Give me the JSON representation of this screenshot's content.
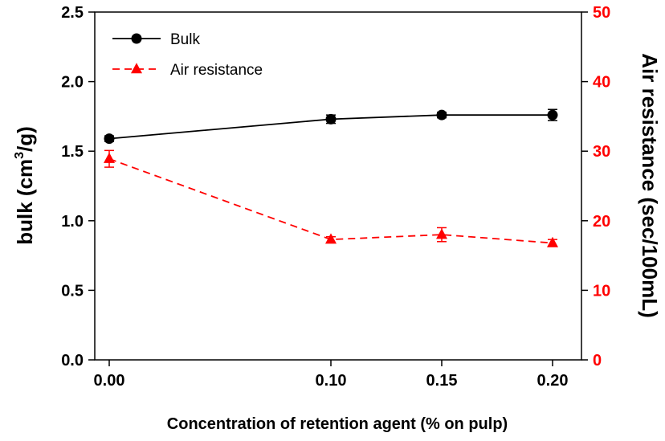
{
  "chart_data": {
    "type": "line",
    "title": "",
    "xlabel": "Concentration of retention agent (% on pulp)",
    "ylabel_left": {
      "main": "bulk (cm",
      "sup": "3",
      "tail": "/g)"
    },
    "ylabel_right": "Air resistance (sec/100mL)",
    "x_ticks": [
      "0.00",
      "0.10",
      "0.15",
      "0.20"
    ],
    "xlim": [
      0,
      0.22
    ],
    "ylim_left": [
      0,
      2.5
    ],
    "ylim_right": [
      0,
      50
    ],
    "y_ticks_left": [
      "0.0",
      "0.5",
      "1.0",
      "1.5",
      "2.0",
      "2.5"
    ],
    "y_ticks_right": [
      "0",
      "10",
      "20",
      "30",
      "40",
      "50"
    ],
    "legend_position": "top-left",
    "series": [
      {
        "name": "Bulk",
        "axis": "left",
        "color": "#000000",
        "marker": "circle",
        "line_style": "solid",
        "x": [
          0.0,
          0.1,
          0.15,
          0.2
        ],
        "y": [
          1.59,
          1.73,
          1.76,
          1.76
        ],
        "error": [
          0.02,
          0.03,
          0.02,
          0.04
        ]
      },
      {
        "name": "Air resistance",
        "axis": "right",
        "color": "#ff0000",
        "marker": "triangle",
        "line_style": "dashed",
        "x": [
          0.0,
          0.1,
          0.15,
          0.2
        ],
        "y": [
          28.9,
          17.3,
          18.0,
          16.8
        ],
        "error": [
          1.2,
          0.4,
          1.0,
          0.5
        ]
      }
    ]
  }
}
